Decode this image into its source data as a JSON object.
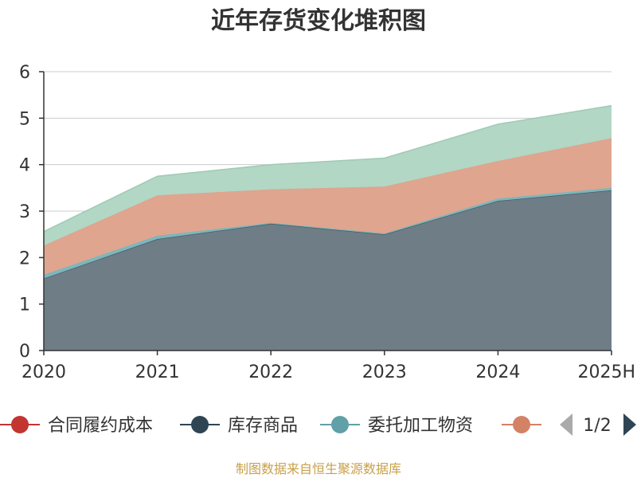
{
  "chart_data": {
    "type": "area",
    "title": "近年存货变化堆积图",
    "ylabel": "",
    "categories": [
      "2020",
      "2021",
      "2022",
      "2023",
      "2024",
      "2025H"
    ],
    "ylim": [
      0,
      6
    ],
    "yticks": [
      0,
      1,
      2,
      3,
      4,
      5,
      6
    ],
    "stacked": true,
    "grid": true,
    "series": [
      {
        "name": "库存商品",
        "color": "#6f7d87",
        "line_color": "#4a5a66",
        "values": [
          1.55,
          2.4,
          2.73,
          2.5,
          3.22,
          3.45
        ]
      },
      {
        "name": "委托加工物资",
        "color": "#7db6bc",
        "line_color": "#7db6bc",
        "values": [
          0.08,
          0.07,
          0.02,
          0.02,
          0.05,
          0.05
        ]
      },
      {
        "name": "",
        "color": "#dfa58f",
        "line_color": "#dfa58f",
        "values": [
          0.63,
          0.87,
          0.72,
          1.01,
          0.81,
          1.07
        ]
      },
      {
        "name": "",
        "color": "#b2d7c5",
        "line_color": "#9fcab5",
        "values": [
          0.3,
          0.41,
          0.53,
          0.61,
          0.79,
          0.7
        ]
      }
    ]
  },
  "legend": {
    "items": [
      {
        "label": "合同履约成本",
        "color": "#c23531"
      },
      {
        "label": "库存商品",
        "color": "#2f4554"
      },
      {
        "label": "委托加工物资",
        "color": "#61a0a8"
      },
      {
        "label": "",
        "color": "#d48265"
      }
    ],
    "page_indicator": "1/2",
    "prev_color": "#aaaaaa",
    "next_color": "#2f4554"
  },
  "source": "制图数据来自恒生聚源数据库"
}
